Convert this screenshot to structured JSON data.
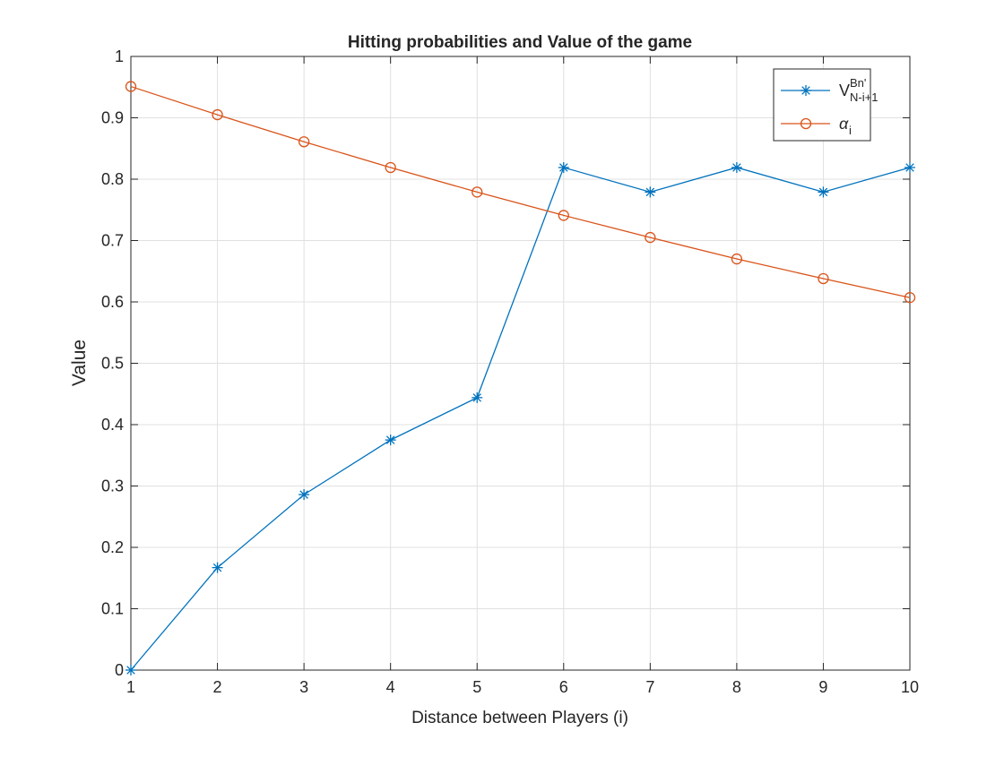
{
  "chart_data": {
    "type": "line",
    "title": "Hitting probabilities and Value of the game",
    "xlabel": "Distance between Players (i)",
    "ylabel": "Value",
    "xlim": [
      1,
      10
    ],
    "ylim": [
      0,
      1
    ],
    "xticks": [
      "1",
      "2",
      "3",
      "4",
      "5",
      "6",
      "7",
      "8",
      "9",
      "10"
    ],
    "yticks": [
      "0",
      "0.1",
      "0.2",
      "0.3",
      "0.4",
      "0.5",
      "0.6",
      "0.7",
      "0.8",
      "0.9",
      "1"
    ],
    "grid": true,
    "legend_position": "top-right",
    "x": [
      1,
      2,
      3,
      4,
      5,
      6,
      7,
      8,
      9,
      10
    ],
    "series": [
      {
        "legend_base": "V",
        "legend_sup": "Bn'",
        "legend_sub": "N-i+1",
        "marker": "asterisk",
        "color": "#0072BD",
        "values": [
          0.0,
          0.167,
          0.286,
          0.375,
          0.444,
          0.819,
          0.779,
          0.819,
          0.779,
          0.819
        ]
      },
      {
        "legend_base": "α",
        "legend_sub": "i",
        "marker": "circle",
        "color": "#D95319",
        "values": [
          0.951,
          0.905,
          0.861,
          0.819,
          0.779,
          0.741,
          0.705,
          0.67,
          0.638,
          0.607
        ]
      }
    ]
  }
}
